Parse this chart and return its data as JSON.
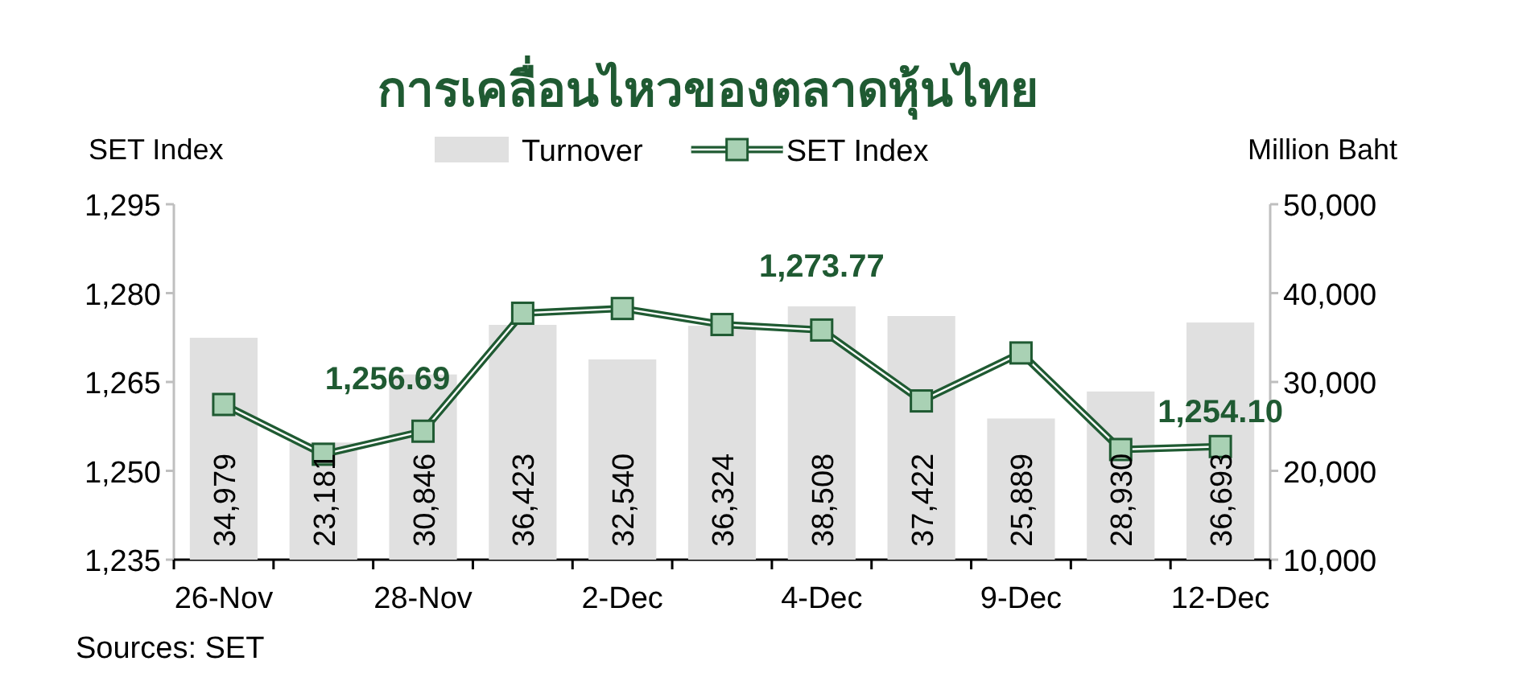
{
  "chart_data": {
    "type": "bar",
    "title": "การเคลื่อนไหวของตลาดหุ้นไทย",
    "ylabel": "SET Index",
    "y2label": "Million Baht",
    "categories": [
      "26-Nov",
      null,
      "28-Nov",
      null,
      "2-Dec",
      null,
      "4-Dec",
      null,
      "9-Dec",
      null,
      "12-Dec"
    ],
    "ylim": [
      1235,
      1295
    ],
    "yticks": [
      {
        "value": 1235,
        "label": "1,235"
      },
      {
        "value": 1250,
        "label": "1,250"
      },
      {
        "value": 1265,
        "label": "1,265"
      },
      {
        "value": 1280,
        "label": "1,280"
      },
      {
        "value": 1295,
        "label": "1,295"
      }
    ],
    "y2lim": [
      10000,
      50000
    ],
    "y2ticks": [
      {
        "value": 10000,
        "label": "10,000"
      },
      {
        "value": 20000,
        "label": "20,000"
      },
      {
        "value": 30000,
        "label": "30,000"
      },
      {
        "value": 40000,
        "label": "40,000"
      },
      {
        "value": 50000,
        "label": "50,000"
      }
    ],
    "series": [
      {
        "name": "Turnover",
        "axis": "y2",
        "color": "#e0e0e0",
        "values": [
          34979,
          23181,
          30846,
          36423,
          32540,
          36324,
          38508,
          37422,
          25889,
          28930,
          36693
        ],
        "value_labels": [
          "34,979",
          "23,181",
          "30,846",
          "36,423",
          "32,540",
          "36,324",
          "38,508",
          "37,422",
          "25,889",
          "28,930",
          "36,693"
        ]
      },
      {
        "name": "SET Index",
        "type": "line",
        "axis": "y",
        "color": "#1f5a32",
        "values": [
          1261.2,
          1252.8,
          1256.69,
          1276.6,
          1277.4,
          1274.7,
          1273.77,
          1261.8,
          1269.9,
          1253.6,
          1254.1
        ],
        "value_labels": [
          null,
          null,
          "1,256.69",
          null,
          null,
          null,
          "1,273.77",
          null,
          null,
          null,
          "1,254.10"
        ]
      }
    ],
    "marker": "square",
    "legend": "top",
    "annotations": [
      "Sources: SET"
    ]
  }
}
